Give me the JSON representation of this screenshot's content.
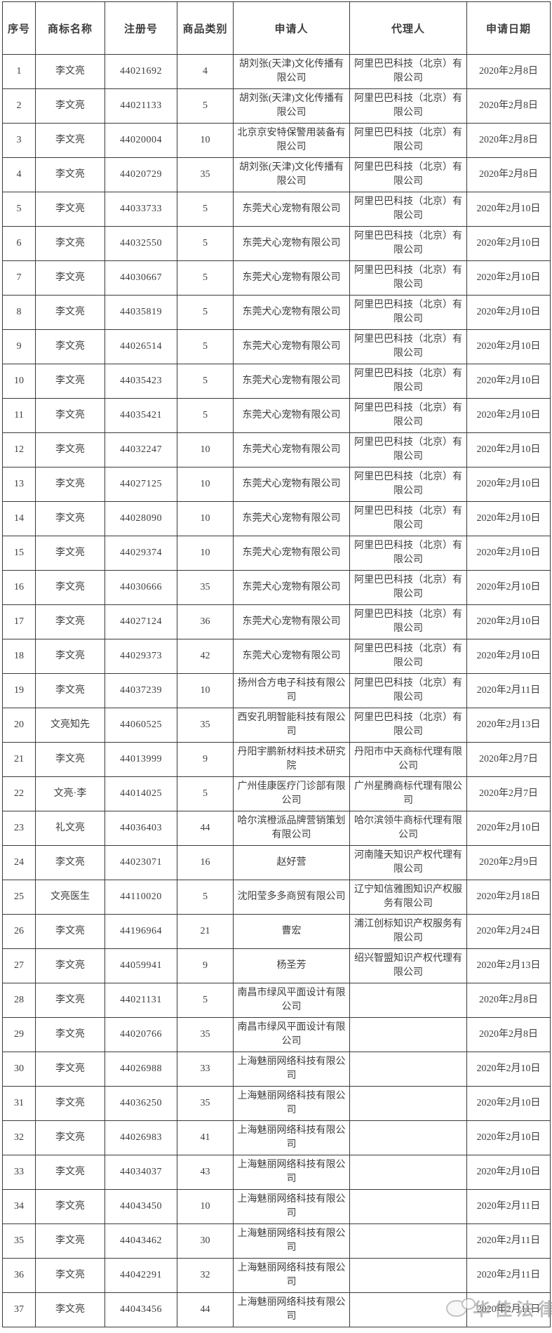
{
  "table": {
    "headers": [
      "序号",
      "商标名称",
      "注册号",
      "商品类别",
      "申请人",
      "代理人",
      "申请日期"
    ],
    "rows": [
      [
        "1",
        "李文亮",
        "44021692",
        "4",
        "胡刘张(天津)文化传播有限公司",
        "阿里巴巴科技（北京）有限公司",
        "2020年2月8日"
      ],
      [
        "2",
        "李文亮",
        "44021133",
        "5",
        "胡刘张(天津)文化传播有限公司",
        "阿里巴巴科技（北京）有限公司",
        "2020年2月8日"
      ],
      [
        "3",
        "李文亮",
        "44020004",
        "10",
        "北京京安特保警用装备有限公司",
        "阿里巴巴科技（北京）有限公司",
        "2020年2月8日"
      ],
      [
        "4",
        "李文亮",
        "44020729",
        "35",
        "胡刘张(天津)文化传播有限公司",
        "阿里巴巴科技（北京）有限公司",
        "2020年2月8日"
      ],
      [
        "5",
        "李文亮",
        "44033733",
        "5",
        "东莞犬心宠物有限公司",
        "阿里巴巴科技（北京）有限公司",
        "2020年2月10日"
      ],
      [
        "6",
        "李文亮",
        "44032550",
        "5",
        "东莞犬心宠物有限公司",
        "阿里巴巴科技（北京）有限公司",
        "2020年2月10日"
      ],
      [
        "7",
        "李文亮",
        "44030667",
        "5",
        "东莞犬心宠物有限公司",
        "阿里巴巴科技（北京）有限公司",
        "2020年2月10日"
      ],
      [
        "8",
        "李文亮",
        "44035819",
        "5",
        "东莞犬心宠物有限公司",
        "阿里巴巴科技（北京）有限公司",
        "2020年2月10日"
      ],
      [
        "9",
        "李文亮",
        "44026514",
        "5",
        "东莞犬心宠物有限公司",
        "阿里巴巴科技（北京）有限公司",
        "2020年2月10日"
      ],
      [
        "10",
        "李文亮",
        "44035423",
        "5",
        "东莞犬心宠物有限公司",
        "阿里巴巴科技（北京）有限公司",
        "2020年2月10日"
      ],
      [
        "11",
        "李文亮",
        "44035421",
        "5",
        "东莞犬心宠物有限公司",
        "阿里巴巴科技（北京）有限公司",
        "2020年2月10日"
      ],
      [
        "12",
        "李文亮",
        "44032247",
        "10",
        "东莞犬心宠物有限公司",
        "阿里巴巴科技（北京）有限公司",
        "2020年2月10日"
      ],
      [
        "13",
        "李文亮",
        "44027125",
        "10",
        "东莞犬心宠物有限公司",
        "阿里巴巴科技（北京）有限公司",
        "2020年2月10日"
      ],
      [
        "14",
        "李文亮",
        "44028090",
        "10",
        "东莞犬心宠物有限公司",
        "阿里巴巴科技（北京）有限公司",
        "2020年2月10日"
      ],
      [
        "15",
        "李文亮",
        "44029374",
        "10",
        "东莞犬心宠物有限公司",
        "阿里巴巴科技（北京）有限公司",
        "2020年2月10日"
      ],
      [
        "16",
        "李文亮",
        "44030666",
        "35",
        "东莞犬心宠物有限公司",
        "阿里巴巴科技（北京）有限公司",
        "2020年2月10日"
      ],
      [
        "17",
        "李文亮",
        "44027124",
        "36",
        "东莞犬心宠物有限公司",
        "阿里巴巴科技（北京）有限公司",
        "2020年2月10日"
      ],
      [
        "18",
        "李文亮",
        "44029373",
        "42",
        "东莞犬心宠物有限公司",
        "阿里巴巴科技（北京）有限公司",
        "2020年2月10日"
      ],
      [
        "19",
        "李文亮",
        "44037239",
        "10",
        "扬州合方电子科技有限公司",
        "阿里巴巴科技（北京）有限公司",
        "2020年2月11日"
      ],
      [
        "20",
        "文亮知先",
        "44060525",
        "35",
        "西安孔明智能科技有限公司",
        "阿里巴巴科技（北京）有限公司",
        "2020年2月13日"
      ],
      [
        "21",
        "李文亮",
        "44013999",
        "9",
        "丹阳宇鹏新材料技术研究院",
        "丹阳市中天商标代理有限公司",
        "2020年2月7日"
      ],
      [
        "22",
        "文亮·李",
        "44014025",
        "5",
        "广州佳康医疗门诊部有限公司",
        "广州星腾商标代理有限公司",
        "2020年2月7日"
      ],
      [
        "23",
        "礼文亮",
        "44036403",
        "44",
        "哈尔滨橙派品牌营销策划有限公司",
        "哈尔滨领牛商标代理有限公司",
        "2020年2月10日"
      ],
      [
        "24",
        "李文亮",
        "44023071",
        "16",
        "赵好营",
        "河南隆天知识产权代理有限公司",
        "2020年2月9日"
      ],
      [
        "25",
        "文亮医生",
        "44110020",
        "5",
        "沈阳莹多多商贸有限公司",
        "辽宁知信雅图知识产权服务有限公司",
        "2020年2月18日"
      ],
      [
        "26",
        "李文亮",
        "44196964",
        "21",
        "曹宏",
        "浦江创标知识产权服务有限公司",
        "2020年2月24日"
      ],
      [
        "27",
        "李文亮",
        "44059941",
        "9",
        "杨圣芳",
        "绍兴智盟知识产权代理有限公司",
        "2020年2月13日"
      ],
      [
        "28",
        "李文亮",
        "44021131",
        "5",
        "南昌市绿风平面设计有限公司",
        "",
        "2020年2月8日"
      ],
      [
        "29",
        "李文亮",
        "44020766",
        "35",
        "南昌市绿风平面设计有限公司",
        "",
        "2020年2月8日"
      ],
      [
        "30",
        "李文亮",
        "44026988",
        "33",
        "上海魅丽网络科技有限公司",
        "",
        "2020年2月10日"
      ],
      [
        "31",
        "李文亮",
        "44036250",
        "35",
        "上海魅丽网络科技有限公司",
        "",
        "2020年2月10日"
      ],
      [
        "32",
        "李文亮",
        "44026983",
        "41",
        "上海魅丽网络科技有限公司",
        "",
        "2020年2月10日"
      ],
      [
        "33",
        "李文亮",
        "44034037",
        "43",
        "上海魅丽网络科技有限公司",
        "",
        "2020年2月10日"
      ],
      [
        "34",
        "李文亮",
        "44043450",
        "10",
        "上海魅丽网络科技有限公司",
        "",
        "2020年2月11日"
      ],
      [
        "35",
        "李文亮",
        "44043462",
        "30",
        "上海魅丽网络科技有限公司",
        "",
        "2020年2月11日"
      ],
      [
        "36",
        "李文亮",
        "44042291",
        "32",
        "上海魅丽网络科技有限公司",
        "",
        "2020年2月11日"
      ],
      [
        "37",
        "李文亮",
        "44043456",
        "44",
        "上海魅丽网络科技有限公司",
        "",
        "2020年2月11日"
      ]
    ]
  },
  "watermark": {
    "text": "华佳法律"
  },
  "colors": {
    "border": "#3a3a3a",
    "text": "#3d3d3d",
    "watermark": "#8f8f8f"
  }
}
